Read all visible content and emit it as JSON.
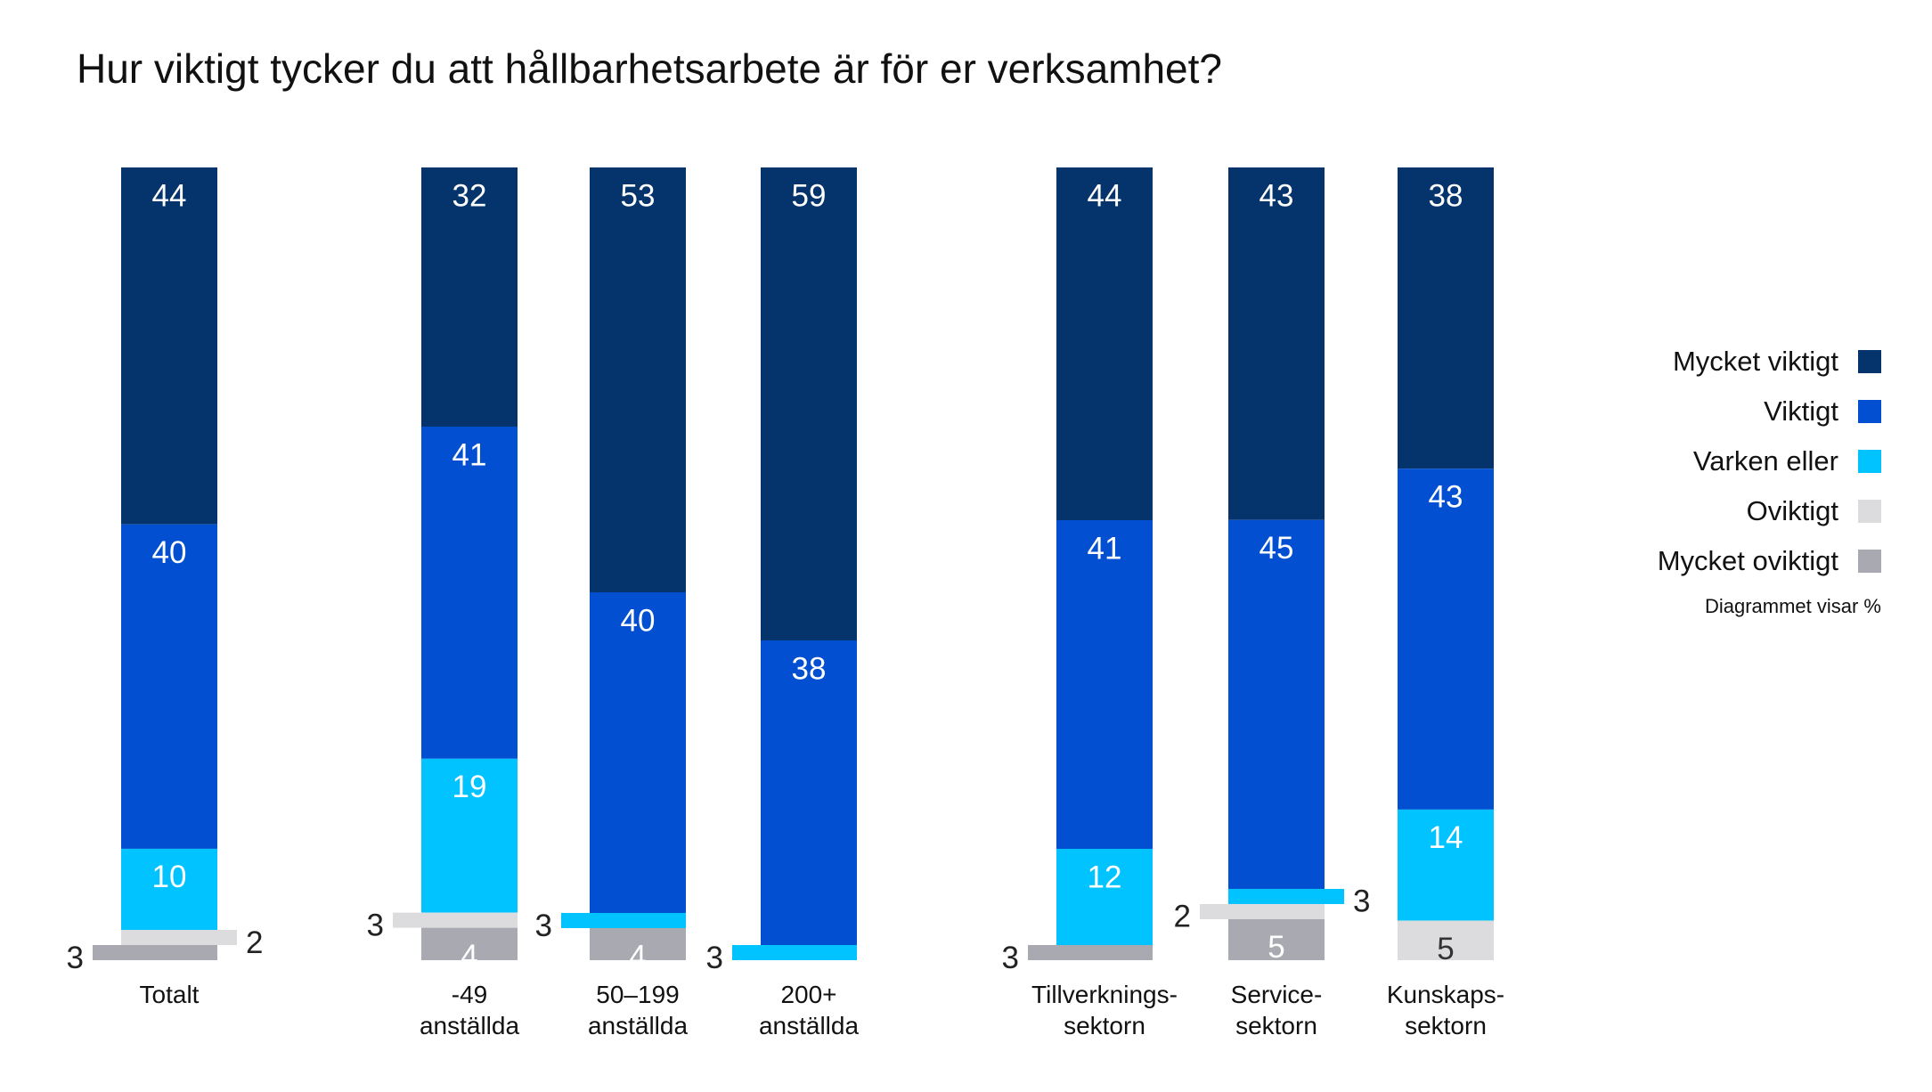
{
  "colors": {
    "mycket_viktigt": "#04346b",
    "viktigt": "#0250d1",
    "varken_eller": "#00c3ff",
    "oviktigt": "#dcdcdf",
    "mycket_oviktigt": "#a9a9b1"
  },
  "legend": {
    "items": [
      {
        "label": "Mycket viktigt",
        "color": "#04346b"
      },
      {
        "label": "Viktigt",
        "color": "#0250d1"
      },
      {
        "label": "Varken eller",
        "color": "#00c3ff"
      },
      {
        "label": "Oviktigt",
        "color": "#dcdcdf"
      },
      {
        "label": "Mycket oviktigt",
        "color": "#a9a9b1"
      }
    ],
    "note": "Diagrammet visar %"
  },
  "chart_data": {
    "type": "bar",
    "stacked": true,
    "orientation": "vertical",
    "title": "Hur viktigt tycker du att hållbarhetsarbete är för er verksamhet?",
    "unit": "%",
    "legend_position": "right",
    "grid": false,
    "categories": [
      [
        "Totalt"
      ],
      [
        "-49",
        "anställda"
      ],
      [
        "50–199",
        "anställda"
      ],
      [
        "200+",
        "anställda"
      ],
      [
        "Tillverknings-",
        "sektorn"
      ],
      [
        "Service-",
        "sektorn"
      ],
      [
        "Kunskaps-",
        "sektorn"
      ]
    ],
    "series": [
      {
        "name": "Mycket viktigt",
        "values": [
          44,
          32,
          53,
          59,
          44,
          43,
          38
        ]
      },
      {
        "name": "Viktigt",
        "values": [
          40,
          41,
          40,
          38,
          41,
          45,
          43
        ]
      },
      {
        "name": "Varken eller",
        "values": [
          10,
          19,
          3,
          3,
          12,
          3,
          14
        ]
      },
      {
        "name": "Oviktigt",
        "values": [
          2,
          3,
          0,
          0,
          0,
          2,
          5
        ]
      },
      {
        "name": "Mycket oviktigt",
        "values": [
          3,
          4,
          4,
          0,
          3,
          5,
          0
        ]
      }
    ]
  }
}
